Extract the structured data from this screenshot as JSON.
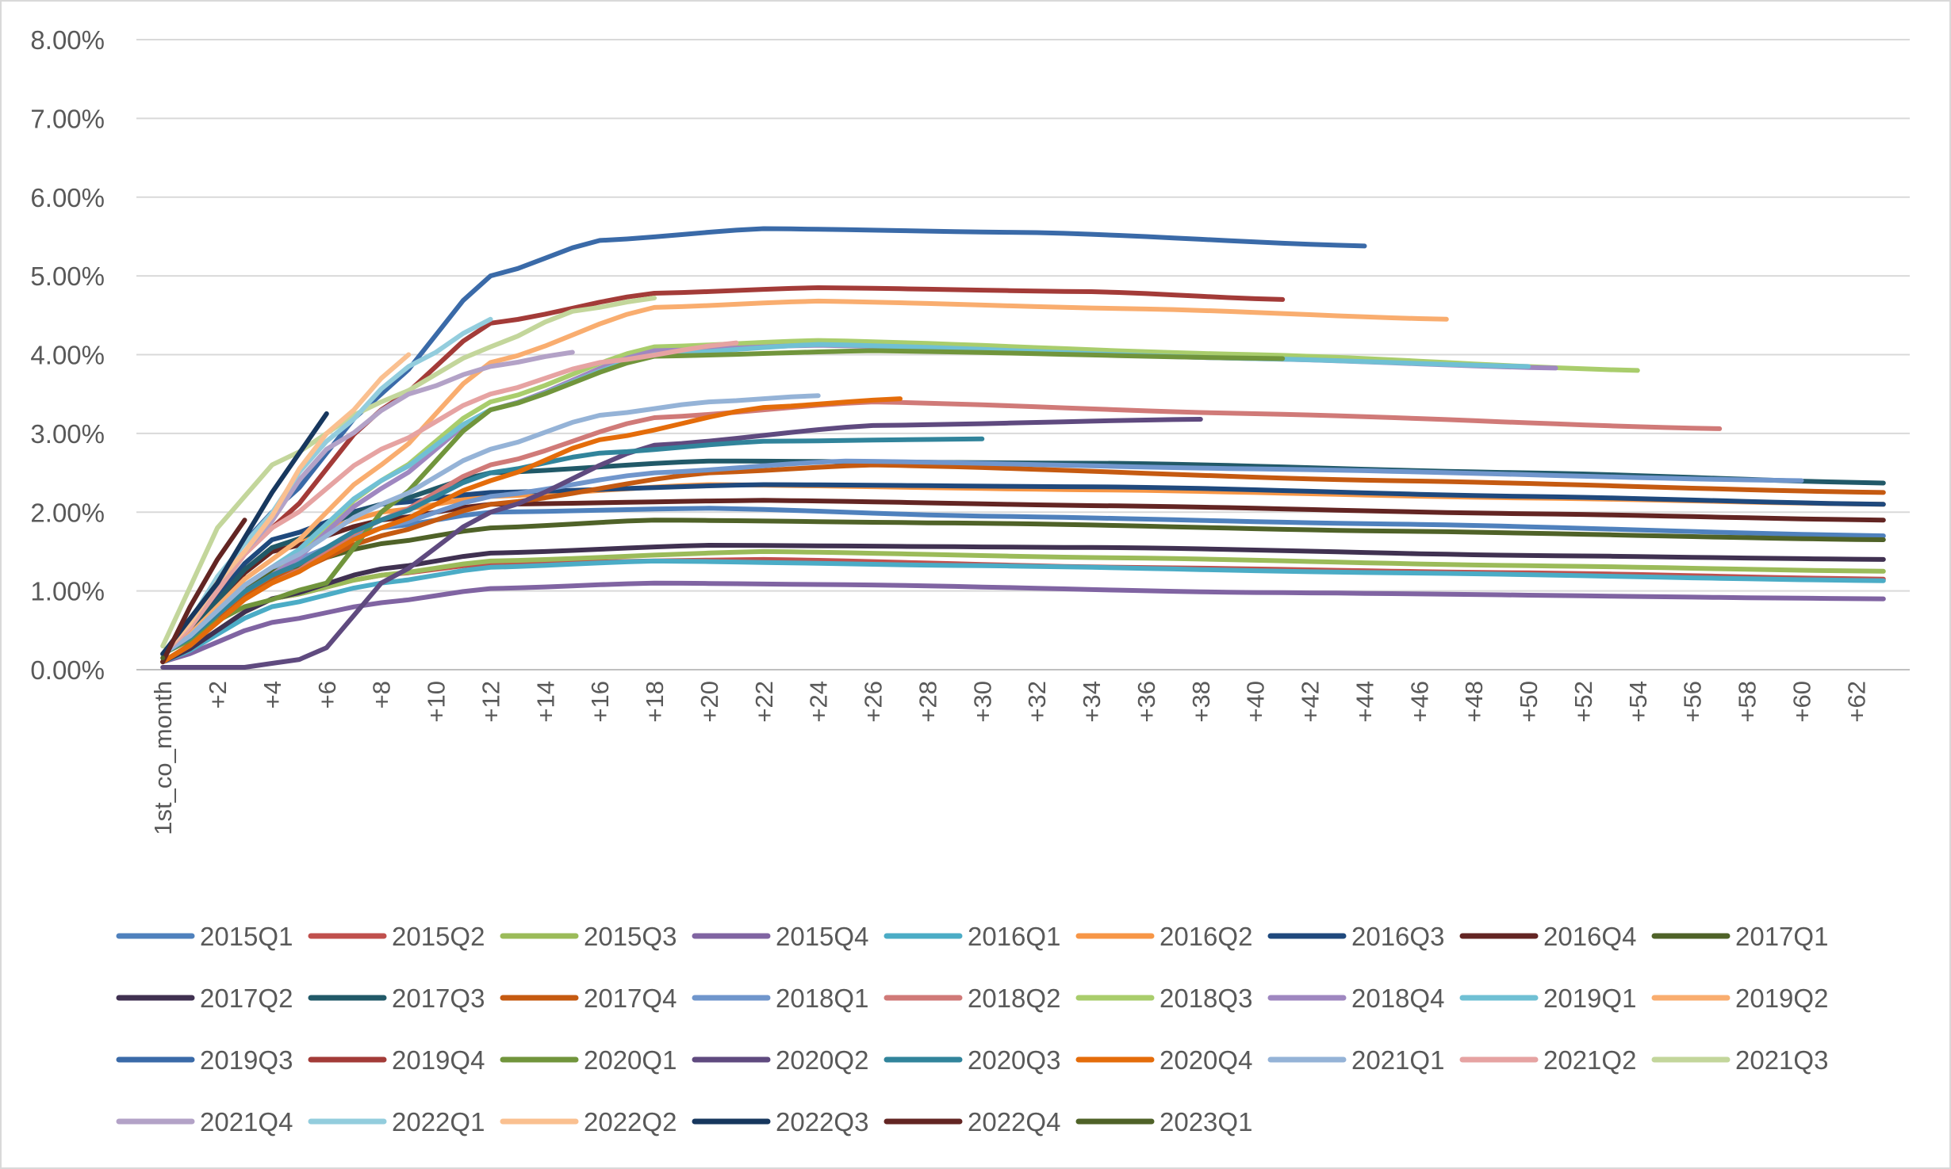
{
  "chart_data": {
    "type": "line",
    "title": "",
    "xlabel": "",
    "ylabel": "",
    "ylim": [
      0,
      0.08
    ],
    "y_ticks": [
      "0.00%",
      "1.00%",
      "2.00%",
      "3.00%",
      "4.00%",
      "5.00%",
      "6.00%",
      "7.00%",
      "8.00%"
    ],
    "x_categories_count": 64,
    "x_tick_labels": [
      "1st_co_month",
      "+2",
      "+4",
      "+6",
      "+8",
      "+10",
      "+12",
      "+14",
      "+16",
      "+18",
      "+20",
      "+22",
      "+24",
      "+26",
      "+28",
      "+30",
      "+32",
      "+34",
      "+36",
      "+38",
      "+40",
      "+42",
      "+44",
      "+46",
      "+48",
      "+50",
      "+52",
      "+54",
      "+56",
      "+58",
      "+60",
      "+62"
    ],
    "grid": "horizontal",
    "legend_position": "bottom",
    "series": [
      {
        "name": "2015Q1",
        "color": "#4f81bd",
        "end_x": 63,
        "knots": [
          [
            0,
            0.002
          ],
          [
            4,
            0.012
          ],
          [
            8,
            0.018
          ],
          [
            12,
            0.02
          ],
          [
            20,
            0.0205
          ],
          [
            30,
            0.0195
          ],
          [
            45,
            0.0185
          ],
          [
            63,
            0.017
          ]
        ]
      },
      {
        "name": "2015Q2",
        "color": "#c0504d",
        "end_x": 63,
        "knots": [
          [
            0,
            0.001
          ],
          [
            4,
            0.009
          ],
          [
            8,
            0.012
          ],
          [
            12,
            0.0135
          ],
          [
            22,
            0.014
          ],
          [
            35,
            0.013
          ],
          [
            50,
            0.0123
          ],
          [
            63,
            0.0115
          ]
        ]
      },
      {
        "name": "2015Q3",
        "color": "#9bbb59",
        "end_x": 63,
        "knots": [
          [
            0,
            0.001
          ],
          [
            4,
            0.009
          ],
          [
            8,
            0.012
          ],
          [
            12,
            0.0138
          ],
          [
            22,
            0.015
          ],
          [
            35,
            0.0142
          ],
          [
            50,
            0.0132
          ],
          [
            63,
            0.0125
          ]
        ]
      },
      {
        "name": "2015Q4",
        "color": "#8064a2",
        "end_x": 63,
        "knots": [
          [
            0,
            0.001
          ],
          [
            4,
            0.006
          ],
          [
            8,
            0.0085
          ],
          [
            12,
            0.0103
          ],
          [
            18,
            0.011
          ],
          [
            25,
            0.0108
          ],
          [
            40,
            0.0098
          ],
          [
            63,
            0.009
          ]
        ]
      },
      {
        "name": "2016Q1",
        "color": "#4bacc6",
        "end_x": 63,
        "knots": [
          [
            0,
            0.001
          ],
          [
            4,
            0.008
          ],
          [
            8,
            0.011
          ],
          [
            12,
            0.013
          ],
          [
            18,
            0.0138
          ],
          [
            30,
            0.0132
          ],
          [
            45,
            0.0123
          ],
          [
            63,
            0.0113
          ]
        ]
      },
      {
        "name": "2016Q2",
        "color": "#f79646",
        "end_x": 63,
        "knots": [
          [
            0,
            0.002
          ],
          [
            4,
            0.0155
          ],
          [
            8,
            0.02
          ],
          [
            12,
            0.022
          ],
          [
            20,
            0.0235
          ],
          [
            35,
            0.0228
          ],
          [
            50,
            0.0218
          ],
          [
            63,
            0.021
          ]
        ]
      },
      {
        "name": "2016Q3",
        "color": "#1f497d",
        "end_x": 63,
        "knots": [
          [
            0,
            0.002
          ],
          [
            4,
            0.0165
          ],
          [
            8,
            0.021
          ],
          [
            12,
            0.0225
          ],
          [
            22,
            0.0235
          ],
          [
            35,
            0.0232
          ],
          [
            50,
            0.022
          ],
          [
            63,
            0.021
          ]
        ]
      },
      {
        "name": "2016Q4",
        "color": "#632523",
        "end_x": 63,
        "knots": [
          [
            0,
            0.002
          ],
          [
            4,
            0.015
          ],
          [
            8,
            0.019
          ],
          [
            12,
            0.021
          ],
          [
            22,
            0.0215
          ],
          [
            35,
            0.0208
          ],
          [
            50,
            0.0198
          ],
          [
            63,
            0.019
          ]
        ]
      },
      {
        "name": "2017Q1",
        "color": "#4f6228",
        "end_x": 63,
        "knots": [
          [
            0,
            0.002
          ],
          [
            4,
            0.0125
          ],
          [
            8,
            0.016
          ],
          [
            12,
            0.018
          ],
          [
            18,
            0.019
          ],
          [
            30,
            0.0186
          ],
          [
            45,
            0.0176
          ],
          [
            63,
            0.0165
          ]
        ]
      },
      {
        "name": "2017Q2",
        "color": "#403151",
        "end_x": 63,
        "knots": [
          [
            0,
            0.001
          ],
          [
            4,
            0.009
          ],
          [
            8,
            0.0128
          ],
          [
            12,
            0.0148
          ],
          [
            20,
            0.0158
          ],
          [
            35,
            0.0155
          ],
          [
            50,
            0.0145
          ],
          [
            63,
            0.014
          ]
        ]
      },
      {
        "name": "2017Q3",
        "color": "#215968",
        "end_x": 63,
        "knots": [
          [
            0,
            0.002
          ],
          [
            4,
            0.0155
          ],
          [
            8,
            0.021
          ],
          [
            12,
            0.025
          ],
          [
            20,
            0.0265
          ],
          [
            35,
            0.0262
          ],
          [
            50,
            0.025
          ],
          [
            63,
            0.0237
          ]
        ]
      },
      {
        "name": "2017Q4",
        "color": "#c55a11",
        "end_x": 63,
        "knots": [
          [
            0,
            0.001
          ],
          [
            4,
            0.0115
          ],
          [
            8,
            0.017
          ],
          [
            12,
            0.021
          ],
          [
            20,
            0.025
          ],
          [
            26,
            0.026
          ],
          [
            45,
            0.024
          ],
          [
            63,
            0.0225
          ]
        ]
      },
      {
        "name": "2018Q1",
        "color": "#7096cc",
        "end_x": 60,
        "knots": [
          [
            0,
            0.002
          ],
          [
            4,
            0.013
          ],
          [
            8,
            0.018
          ],
          [
            12,
            0.022
          ],
          [
            18,
            0.025
          ],
          [
            25,
            0.0265
          ],
          [
            40,
            0.0255
          ],
          [
            60,
            0.024
          ]
        ]
      },
      {
        "name": "2018Q2",
        "color": "#d07a78",
        "end_x": 57,
        "knots": [
          [
            0,
            0.001
          ],
          [
            4,
            0.011
          ],
          [
            8,
            0.019
          ],
          [
            12,
            0.026
          ],
          [
            18,
            0.032
          ],
          [
            26,
            0.034
          ],
          [
            40,
            0.0325
          ],
          [
            57,
            0.0306
          ]
        ]
      },
      {
        "name": "2018Q3",
        "color": "#a9cd6c",
        "end_x": 54,
        "knots": [
          [
            0,
            0.002
          ],
          [
            4,
            0.012
          ],
          [
            8,
            0.024
          ],
          [
            12,
            0.034
          ],
          [
            18,
            0.041
          ],
          [
            24,
            0.0418
          ],
          [
            40,
            0.04
          ],
          [
            54,
            0.038
          ]
        ]
      },
      {
        "name": "2018Q4",
        "color": "#9f87c0",
        "end_x": 51,
        "knots": [
          [
            0,
            0.002
          ],
          [
            4,
            0.012
          ],
          [
            8,
            0.023
          ],
          [
            12,
            0.033
          ],
          [
            18,
            0.0405
          ],
          [
            24,
            0.0412
          ],
          [
            40,
            0.0395
          ],
          [
            51,
            0.0383
          ]
        ]
      },
      {
        "name": "2019Q1",
        "color": "#70c0d4",
        "end_x": 50,
        "knots": [
          [
            0,
            0.002
          ],
          [
            4,
            0.013
          ],
          [
            8,
            0.024
          ],
          [
            12,
            0.033
          ],
          [
            18,
            0.04
          ],
          [
            24,
            0.0413
          ],
          [
            40,
            0.0395
          ],
          [
            50,
            0.0385
          ]
        ]
      },
      {
        "name": "2019Q2",
        "color": "#f9ad6f",
        "end_x": 47,
        "knots": [
          [
            0,
            0.002
          ],
          [
            4,
            0.014
          ],
          [
            8,
            0.026
          ],
          [
            12,
            0.039
          ],
          [
            18,
            0.046
          ],
          [
            24,
            0.0468
          ],
          [
            36,
            0.0458
          ],
          [
            47,
            0.0445
          ]
        ]
      },
      {
        "name": "2019Q3",
        "color": "#3a6aa8",
        "end_x": 44,
        "knots": [
          [
            0,
            0.002
          ],
          [
            4,
            0.02
          ],
          [
            8,
            0.035
          ],
          [
            12,
            0.05
          ],
          [
            16,
            0.0545
          ],
          [
            22,
            0.056
          ],
          [
            32,
            0.0555
          ],
          [
            44,
            0.0538
          ]
        ]
      },
      {
        "name": "2019Q4",
        "color": "#a33b38",
        "end_x": 41,
        "knots": [
          [
            0,
            0.002
          ],
          [
            4,
            0.018
          ],
          [
            8,
            0.033
          ],
          [
            12,
            0.044
          ],
          [
            18,
            0.0478
          ],
          [
            24,
            0.0485
          ],
          [
            34,
            0.048
          ],
          [
            41,
            0.047
          ]
        ]
      },
      {
        "name": "2020Q1",
        "color": "#71953c",
        "end_x": 41,
        "knots": [
          [
            0,
            0.002
          ],
          [
            3,
            0.008
          ],
          [
            6,
            0.011
          ],
          [
            8,
            0.02
          ],
          [
            12,
            0.033
          ],
          [
            18,
            0.0398
          ],
          [
            26,
            0.0405
          ],
          [
            41,
            0.0395
          ]
        ]
      },
      {
        "name": "2020Q2",
        "color": "#5f4a7f",
        "end_x": 38,
        "knots": [
          [
            0,
            0.0003
          ],
          [
            3,
            0.0003
          ],
          [
            5,
            0.0013
          ],
          [
            6,
            0.0028
          ],
          [
            8,
            0.011
          ],
          [
            12,
            0.02
          ],
          [
            18,
            0.0285
          ],
          [
            26,
            0.031
          ],
          [
            38,
            0.0318
          ]
        ]
      },
      {
        "name": "2020Q3",
        "color": "#31849b",
        "end_x": 30,
        "knots": [
          [
            0,
            0.002
          ],
          [
            4,
            0.012
          ],
          [
            8,
            0.019
          ],
          [
            12,
            0.025
          ],
          [
            16,
            0.0275
          ],
          [
            22,
            0.029
          ],
          [
            30,
            0.0293
          ]
        ]
      },
      {
        "name": "2020Q4",
        "color": "#e46c0a",
        "end_x": 27,
        "knots": [
          [
            0,
            0.001
          ],
          [
            4,
            0.011
          ],
          [
            8,
            0.018
          ],
          [
            12,
            0.024
          ],
          [
            16,
            0.0292
          ],
          [
            22,
            0.0333
          ],
          [
            27,
            0.0344
          ]
        ]
      },
      {
        "name": "2021Q1",
        "color": "#95b3d7",
        "end_x": 24,
        "knots": [
          [
            0,
            0.002
          ],
          [
            4,
            0.013
          ],
          [
            8,
            0.021
          ],
          [
            12,
            0.028
          ],
          [
            16,
            0.0323
          ],
          [
            20,
            0.034
          ],
          [
            24,
            0.0348
          ]
        ]
      },
      {
        "name": "2021Q2",
        "color": "#e6a3a2",
        "end_x": 21,
        "knots": [
          [
            0,
            0.002
          ],
          [
            4,
            0.018
          ],
          [
            8,
            0.028
          ],
          [
            12,
            0.035
          ],
          [
            16,
            0.039
          ],
          [
            21,
            0.0415
          ]
        ]
      },
      {
        "name": "2021Q3",
        "color": "#c3d69b",
        "end_x": 18,
        "knots": [
          [
            0,
            0.003
          ],
          [
            2,
            0.018
          ],
          [
            4,
            0.026
          ],
          [
            8,
            0.034
          ],
          [
            12,
            0.041
          ],
          [
            15,
            0.0455
          ],
          [
            18,
            0.0472
          ]
        ]
      },
      {
        "name": "2021Q4",
        "color": "#b3a2c7",
        "end_x": 15,
        "knots": [
          [
            0,
            0.002
          ],
          [
            3,
            0.015
          ],
          [
            6,
            0.028
          ],
          [
            9,
            0.035
          ],
          [
            12,
            0.0385
          ],
          [
            15,
            0.0403
          ]
        ]
      },
      {
        "name": "2022Q1",
        "color": "#93cddd",
        "end_x": 12,
        "knots": [
          [
            0,
            0.002
          ],
          [
            3,
            0.016
          ],
          [
            6,
            0.029
          ],
          [
            9,
            0.0385
          ],
          [
            12,
            0.0445
          ]
        ]
      },
      {
        "name": "2022Q2",
        "color": "#fac090",
        "end_x": 9,
        "knots": [
          [
            0,
            0.002
          ],
          [
            3,
            0.015
          ],
          [
            6,
            0.03
          ],
          [
            9,
            0.04
          ]
        ]
      },
      {
        "name": "2022Q3",
        "color": "#17375e",
        "end_x": 6,
        "knots": [
          [
            0,
            0.002
          ],
          [
            2,
            0.011
          ],
          [
            4,
            0.0225
          ],
          [
            6,
            0.0325
          ]
        ]
      },
      {
        "name": "2022Q4",
        "color": "#632523",
        "end_x": 3,
        "knots": [
          [
            0,
            0.001
          ],
          [
            1,
            0.008
          ],
          [
            2,
            0.014
          ],
          [
            3,
            0.019
          ]
        ]
      },
      {
        "name": "2023Q1",
        "color": "#4f6228",
        "end_x": 0,
        "knots": [
          [
            0,
            0.0015
          ]
        ]
      }
    ]
  }
}
